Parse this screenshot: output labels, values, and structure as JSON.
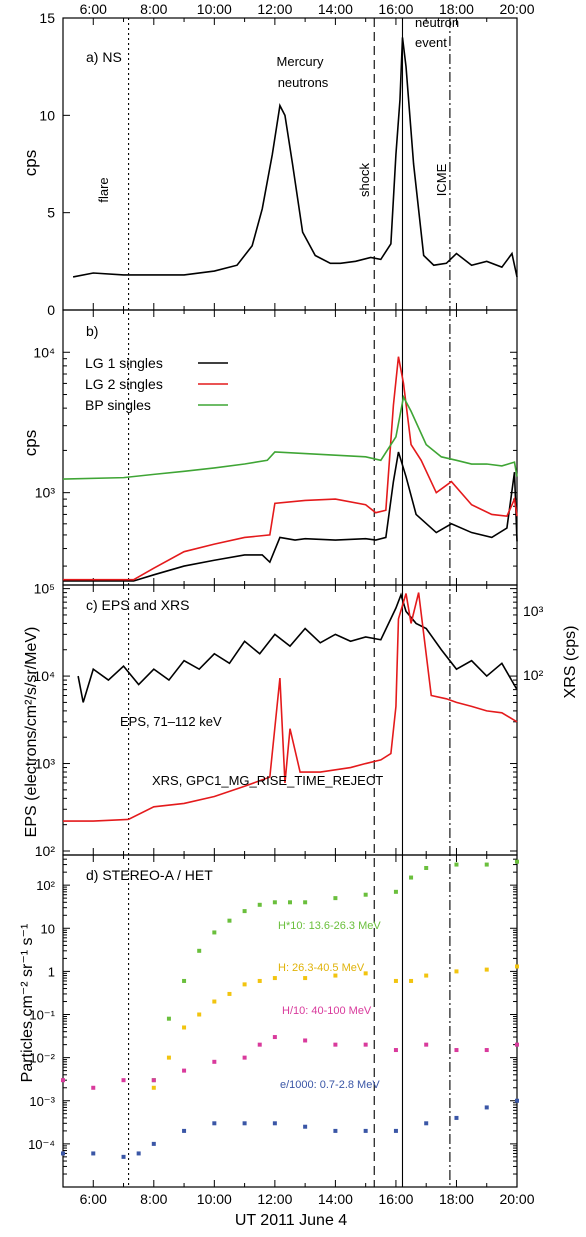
{
  "figure": {
    "xlabel": "UT 2011 June 4",
    "x_ticks": [
      "6:00",
      "8:00",
      "10:00",
      "12:00",
      "14:00",
      "16:00",
      "18:00",
      "20:00"
    ]
  },
  "events": [
    {
      "time": "7:10",
      "style": "dotted",
      "label": "flare"
    },
    {
      "time": "15:17",
      "style": "dashed",
      "label": "shock"
    },
    {
      "time": "16:13",
      "style": "solid",
      "label": ""
    },
    {
      "time": "17:47",
      "style": "dashdot",
      "label": "ICME"
    }
  ],
  "chart_data": [
    {
      "type": "line",
      "panel": "a",
      "title": "a) NS",
      "ylabel": "cps",
      "xlim": [
        "5:00",
        "20:00"
      ],
      "ylim": [
        0,
        15
      ],
      "y_ticks": [
        "0",
        "5",
        "10",
        "15"
      ],
      "annotations": [
        "Mercury",
        "neutrons",
        "neutron",
        "event"
      ],
      "series": [
        {
          "color": "#000000",
          "x": [
            "5:20",
            "6:00",
            "7:00",
            "8:00",
            "9:00",
            "10:00",
            "10:45",
            "11:15",
            "11:35",
            "11:55",
            "12:10",
            "12:20",
            "12:35",
            "12:55",
            "13:20",
            "13:50",
            "14:10",
            "14:40",
            "15:10",
            "15:30",
            "15:50",
            "16:00",
            "16:08",
            "16:13",
            "16:20",
            "16:35",
            "16:55",
            "17:15",
            "17:40",
            "18:00",
            "18:30",
            "19:00",
            "19:30",
            "19:50",
            "20:00"
          ],
          "values": [
            1.7,
            1.9,
            1.8,
            1.8,
            1.8,
            2.0,
            2.3,
            3.3,
            5.2,
            8.0,
            10.5,
            10.0,
            7.5,
            4.0,
            2.8,
            2.4,
            2.4,
            2.5,
            2.7,
            2.6,
            3.4,
            8.0,
            10.8,
            14.0,
            12.5,
            7.5,
            2.8,
            2.3,
            2.4,
            2.9,
            2.3,
            2.5,
            2.2,
            2.9,
            1.7
          ]
        }
      ]
    },
    {
      "type": "line",
      "panel": "b",
      "title": "b)",
      "ylabel": "cps",
      "xlim": [
        "5:00",
        "20:00"
      ],
      "ylim": [
        220,
        20000
      ],
      "yscale": "log",
      "y_tick_labels": [
        "10³",
        "10⁴"
      ],
      "legend_position": "top-left",
      "series": [
        {
          "name": "LG 1 singles",
          "color": "#000000",
          "x": [
            "5:00",
            "7:20",
            "8:00",
            "9:00",
            "10:00",
            "11:00",
            "11:35",
            "11:50",
            "12:10",
            "12:40",
            "13:00",
            "14:00",
            "15:00",
            "15:20",
            "15:40",
            "15:55",
            "16:05",
            "16:20",
            "16:40",
            "17:20",
            "17:50",
            "18:30",
            "19:10",
            "19:40",
            "19:55",
            "20:00"
          ],
          "values": [
            235,
            235,
            260,
            300,
            330,
            360,
            360,
            320,
            480,
            460,
            470,
            460,
            470,
            460,
            480,
            1200,
            1950,
            1300,
            700,
            520,
            600,
            520,
            480,
            560,
            1400,
            450
          ]
        },
        {
          "name": "LG 2 singles",
          "color": "#e41a1c",
          "x": [
            "5:00",
            "7:20",
            "8:00",
            "9:00",
            "10:00",
            "11:00",
            "11:50",
            "12:00",
            "13:00",
            "14:00",
            "15:00",
            "15:20",
            "15:40",
            "15:55",
            "16:05",
            "16:15",
            "16:30",
            "16:50",
            "17:20",
            "17:50",
            "18:30",
            "19:10",
            "19:40",
            "19:55",
            "20:00"
          ],
          "values": [
            240,
            240,
            290,
            380,
            430,
            480,
            500,
            840,
            880,
            900,
            820,
            720,
            750,
            4200,
            9300,
            6000,
            2200,
            1700,
            1000,
            1200,
            820,
            700,
            680,
            900,
            680
          ]
        },
        {
          "name": "BP singles",
          "color": "#3fa535",
          "x": [
            "5:00",
            "7:00",
            "8:00",
            "9:00",
            "10:00",
            "11:00",
            "11:45",
            "12:00",
            "13:00",
            "14:00",
            "15:00",
            "15:30",
            "16:00",
            "16:15",
            "16:30",
            "17:00",
            "17:30",
            "18:00",
            "18:30",
            "19:00",
            "19:30",
            "19:55",
            "20:00"
          ],
          "values": [
            1250,
            1280,
            1350,
            1420,
            1500,
            1600,
            1700,
            1950,
            1900,
            1850,
            1800,
            1700,
            2500,
            4800,
            3800,
            2200,
            1800,
            1700,
            1600,
            1600,
            1550,
            1650,
            1300
          ]
        }
      ]
    },
    {
      "type": "line",
      "panel": "c",
      "title": "c) EPS and XRS",
      "ylabel": "EPS (electrons/cm²/s/sr/MeV)",
      "ylabel_right": "XRS (cps)",
      "xlim": [
        "5:00",
        "20:00"
      ],
      "ylim": [
        90,
        110000
      ],
      "yscale": "log",
      "y_tick_labels": [
        "10²",
        "10³",
        "10⁴",
        "10⁵"
      ],
      "y2_tick_labels": [
        "10²",
        "10³"
      ],
      "series": [
        {
          "label": "EPS, 71–112 keV",
          "color": "#000000",
          "x": [
            "5:30",
            "5:40",
            "6:00",
            "6:30",
            "7:00",
            "7:30",
            "8:00",
            "8:30",
            "9:00",
            "9:30",
            "10:00",
            "10:30",
            "11:00",
            "11:30",
            "12:00",
            "12:30",
            "13:00",
            "13:30",
            "14:00",
            "14:30",
            "15:00",
            "15:30",
            "16:00",
            "16:10",
            "16:20",
            "16:40",
            "17:00",
            "17:30",
            "18:00",
            "18:30",
            "19:00",
            "19:30",
            "20:00"
          ],
          "values": [
            10000,
            5000,
            12000,
            9000,
            13000,
            8000,
            12000,
            9000,
            15000,
            12000,
            18000,
            14000,
            25000,
            18000,
            30000,
            22000,
            35000,
            24000,
            30000,
            25000,
            28000,
            26000,
            60000,
            85000,
            55000,
            40000,
            35000,
            20000,
            12000,
            15000,
            10000,
            14000,
            7000
          ]
        },
        {
          "label": "XRS, GPC1_MG_RISE_TIME_REJECT",
          "color": "#e41a1c",
          "x": [
            "5:00",
            "6:00",
            "7:10",
            "8:00",
            "9:00",
            "10:00",
            "11:00",
            "11:50",
            "12:10",
            "12:20",
            "12:30",
            "12:50",
            "13:30",
            "14:30",
            "15:00",
            "15:30",
            "15:50",
            "16:00",
            "16:05",
            "16:20",
            "16:30",
            "16:45",
            "17:10",
            "17:40",
            "18:00",
            "18:30",
            "19:00",
            "19:30",
            "20:00"
          ],
          "values": [
            220,
            220,
            230,
            320,
            350,
            420,
            550,
            700,
            9500,
            600,
            2500,
            800,
            800,
            900,
            1000,
            1100,
            1300,
            4500,
            45000,
            88000,
            40000,
            90000,
            6000,
            5500,
            5000,
            4500,
            4000,
            3800,
            3000
          ]
        }
      ]
    },
    {
      "type": "scatter",
      "panel": "d",
      "title": "d) STEREO-A / HET",
      "ylabel": "Particles cm⁻² sr⁻¹ s⁻¹",
      "xlim": [
        "5:00",
        "20:00"
      ],
      "ylim": [
        1e-05,
        500
      ],
      "yscale": "log",
      "y_tick_labels": [
        "10⁻⁴",
        "10⁻³",
        "10⁻²",
        "10⁻¹",
        "1",
        "10",
        "10²"
      ],
      "series": [
        {
          "name": "H*10: 13.6-26.3 MeV",
          "color": "#6abf3c",
          "x": [
            "8:00",
            "8:30",
            "9:00",
            "9:30",
            "10:00",
            "10:30",
            "11:00",
            "11:30",
            "12:00",
            "12:30",
            "13:00",
            "14:00",
            "15:00",
            "16:00",
            "16:30",
            "17:00",
            "18:00",
            "19:00",
            "20:00"
          ],
          "values": [
            0.003,
            0.08,
            0.6,
            3,
            8,
            15,
            25,
            35,
            40,
            40,
            40,
            50,
            60,
            70,
            150,
            250,
            300,
            300,
            350
          ]
        },
        {
          "name": "H: 26.3-40.5 MeV",
          "color": "#f2c40f",
          "x": [
            "8:00",
            "8:30",
            "9:00",
            "9:30",
            "10:00",
            "10:30",
            "11:00",
            "11:30",
            "12:00",
            "13:00",
            "14:00",
            "15:00",
            "16:00",
            "16:30",
            "17:00",
            "18:00",
            "19:00",
            "20:00"
          ],
          "values": [
            0.002,
            0.01,
            0.05,
            0.1,
            0.2,
            0.3,
            0.5,
            0.6,
            0.7,
            0.7,
            0.8,
            0.9,
            0.6,
            0.6,
            0.8,
            1.0,
            1.1,
            1.3
          ]
        },
        {
          "name": "H/10: 40-100 MeV",
          "color": "#d93a9c",
          "x": [
            "5:00",
            "6:00",
            "7:00",
            "8:00",
            "9:00",
            "10:00",
            "11:00",
            "11:30",
            "12:00",
            "13:00",
            "14:00",
            "15:00",
            "16:00",
            "17:00",
            "18:00",
            "19:00",
            "20:00"
          ],
          "values": [
            0.003,
            0.002,
            0.003,
            0.003,
            0.005,
            0.008,
            0.01,
            0.02,
            0.03,
            0.025,
            0.02,
            0.02,
            0.015,
            0.02,
            0.015,
            0.015,
            0.02
          ]
        },
        {
          "name": "e/1000: 0.7-2.8 MeV",
          "color": "#3a56a6",
          "x": [
            "5:00",
            "6:00",
            "7:00",
            "7:30",
            "8:00",
            "9:00",
            "10:00",
            "11:00",
            "12:00",
            "13:00",
            "14:00",
            "15:00",
            "16:00",
            "17:00",
            "18:00",
            "19:00",
            "20:00"
          ],
          "values": [
            6e-05,
            6e-05,
            5e-05,
            6e-05,
            0.0001,
            0.0002,
            0.0003,
            0.0003,
            0.0003,
            0.00025,
            0.0002,
            0.0002,
            0.0002,
            0.0003,
            0.0004,
            0.0007,
            0.001
          ]
        }
      ]
    }
  ]
}
